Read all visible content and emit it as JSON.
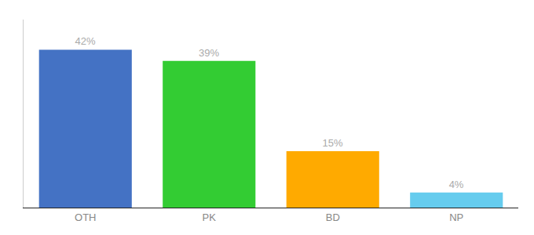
{
  "chart_data": {
    "type": "bar",
    "categories": [
      "OTH",
      "PK",
      "BD",
      "NP"
    ],
    "values": [
      42,
      39,
      15,
      4
    ],
    "value_labels": [
      "42%",
      "39%",
      "15%",
      "4%"
    ],
    "colors": [
      "#4472c4",
      "#33cc33",
      "#ffaa00",
      "#66ccee"
    ],
    "ylim": [
      0,
      50
    ],
    "yticks": [],
    "grid": false,
    "data_labels": true,
    "tick_labels": "x"
  }
}
